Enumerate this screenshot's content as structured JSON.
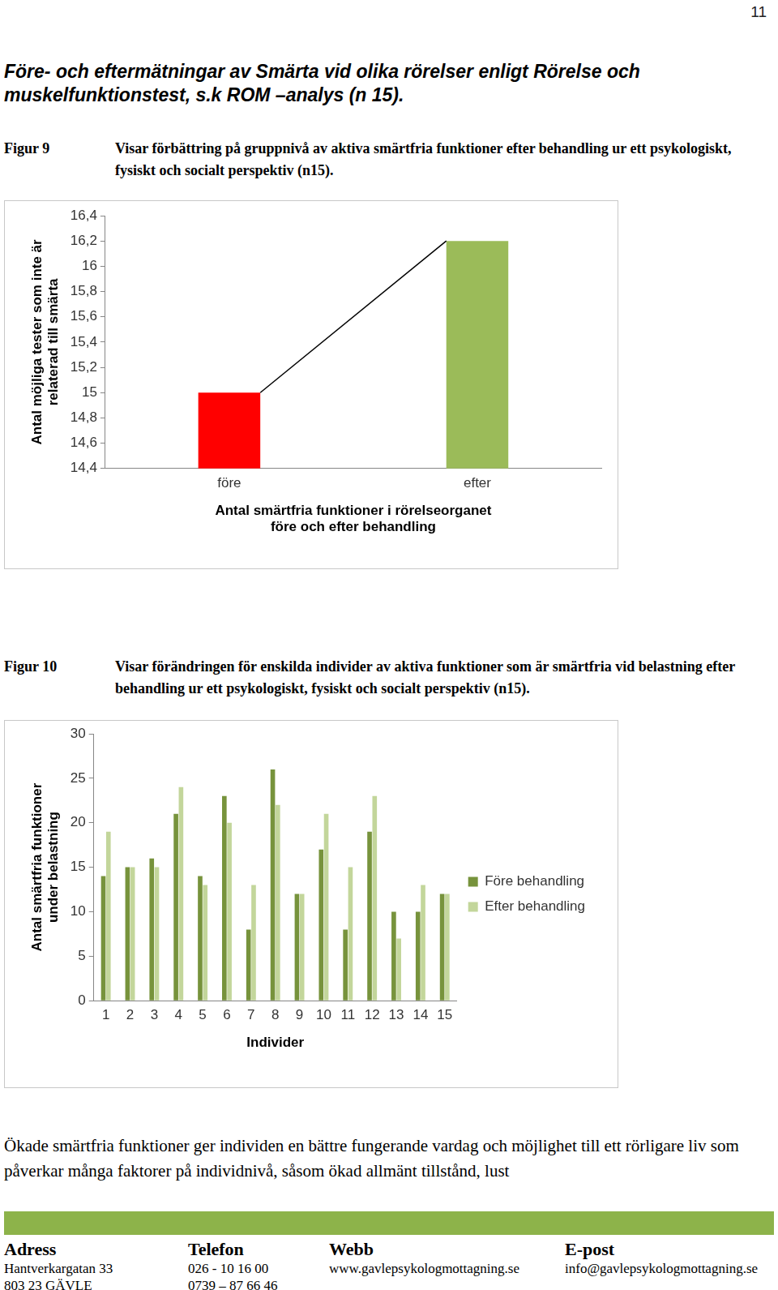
{
  "page_number": "11",
  "heading": "Före- och eftermätningar av Smärta vid olika rörelser enligt Rörelse och muskelfunktionstest, s.k ROM –analys (n 15).",
  "figures": [
    {
      "label": "Figur 9",
      "caption": "Visar förbättring på gruppnivå av aktiva smärtfria funktioner efter behandling ur ett psykologiskt, fysiskt och socialt perspektiv (n15)."
    },
    {
      "label": "Figur 10",
      "caption": "Visar förändringen för enskilda individer av aktiva funktioner som är smärtfria vid belastning efter behandling ur ett psykologiskt, fysiskt och socialt perspektiv (n15)."
    }
  ],
  "chart_data": [
    {
      "type": "bar",
      "categories": [
        "före",
        "efter"
      ],
      "values": [
        15,
        16.2
      ],
      "colors": [
        "#ff0000",
        "#9bbb59"
      ],
      "xlabel": [
        "Antal smärtfria funktioner i rörelseorganet",
        "före och efter behandling"
      ],
      "ylabel": [
        "Antal möjliga tester som inte är",
        "relaterad till smärta"
      ],
      "ylim": [
        14.4,
        16.4
      ],
      "yticks": [
        {
          "value": 14.4,
          "label": "14,4"
        },
        {
          "value": 14.6,
          "label": "14,6"
        },
        {
          "value": 14.8,
          "label": "14,8"
        },
        15,
        {
          "value": 15.2,
          "label": "15,2"
        },
        {
          "value": 15.4,
          "label": "15,4"
        },
        {
          "value": 15.6,
          "label": "15,6"
        },
        {
          "value": 15.8,
          "label": "15,8"
        },
        16,
        {
          "value": 16.2,
          "label": "16,2"
        },
        {
          "value": 16.4,
          "label": "16,4"
        }
      ],
      "grid": false
    },
    {
      "type": "bar",
      "categories": [
        "1",
        "2",
        "3",
        "4",
        "5",
        "6",
        "7",
        "8",
        "9",
        "10",
        "11",
        "12",
        "13",
        "14",
        "15"
      ],
      "series": [
        {
          "name": "Före behandling",
          "color": "#77933c",
          "values": [
            14,
            15,
            16,
            21,
            14,
            23,
            8,
            26,
            12,
            17,
            8,
            19,
            10,
            10,
            12
          ]
        },
        {
          "name": "Efter behandling",
          "color": "#c3d69b",
          "values": [
            19,
            15,
            15,
            24,
            13,
            20,
            13,
            22,
            12,
            21,
            15,
            23,
            7,
            13,
            12
          ]
        }
      ],
      "xlabel": "Individer",
      "ylabel": [
        "Antal smärtfria funktioner",
        "under belastning"
      ],
      "ylim": [
        0,
        30
      ],
      "yticks": [
        0,
        5,
        10,
        15,
        20,
        25,
        30
      ],
      "grid": false,
      "legend": "right"
    }
  ],
  "body_text": "Ökade smärtfria funktioner ger individen en bättre fungerande vardag och möjlighet till ett rörligare liv som påverkar många faktorer på individnivå, såsom ökad allmänt tillstånd, lust",
  "footer": {
    "columns": [
      {
        "heading": "Adress",
        "lines": [
          "Hantverkargatan 33",
          "803 23 GÄVLE"
        ]
      },
      {
        "heading": "Telefon",
        "lines": [
          "026 - 10 16 00",
          "0739 – 87 66 46"
        ]
      },
      {
        "heading": "Webb",
        "lines": [
          "www.gavlepsykologmottagning.se"
        ]
      },
      {
        "heading": "E-post",
        "lines": [
          "info@gavlepsykologmottagning.se"
        ]
      }
    ]
  }
}
